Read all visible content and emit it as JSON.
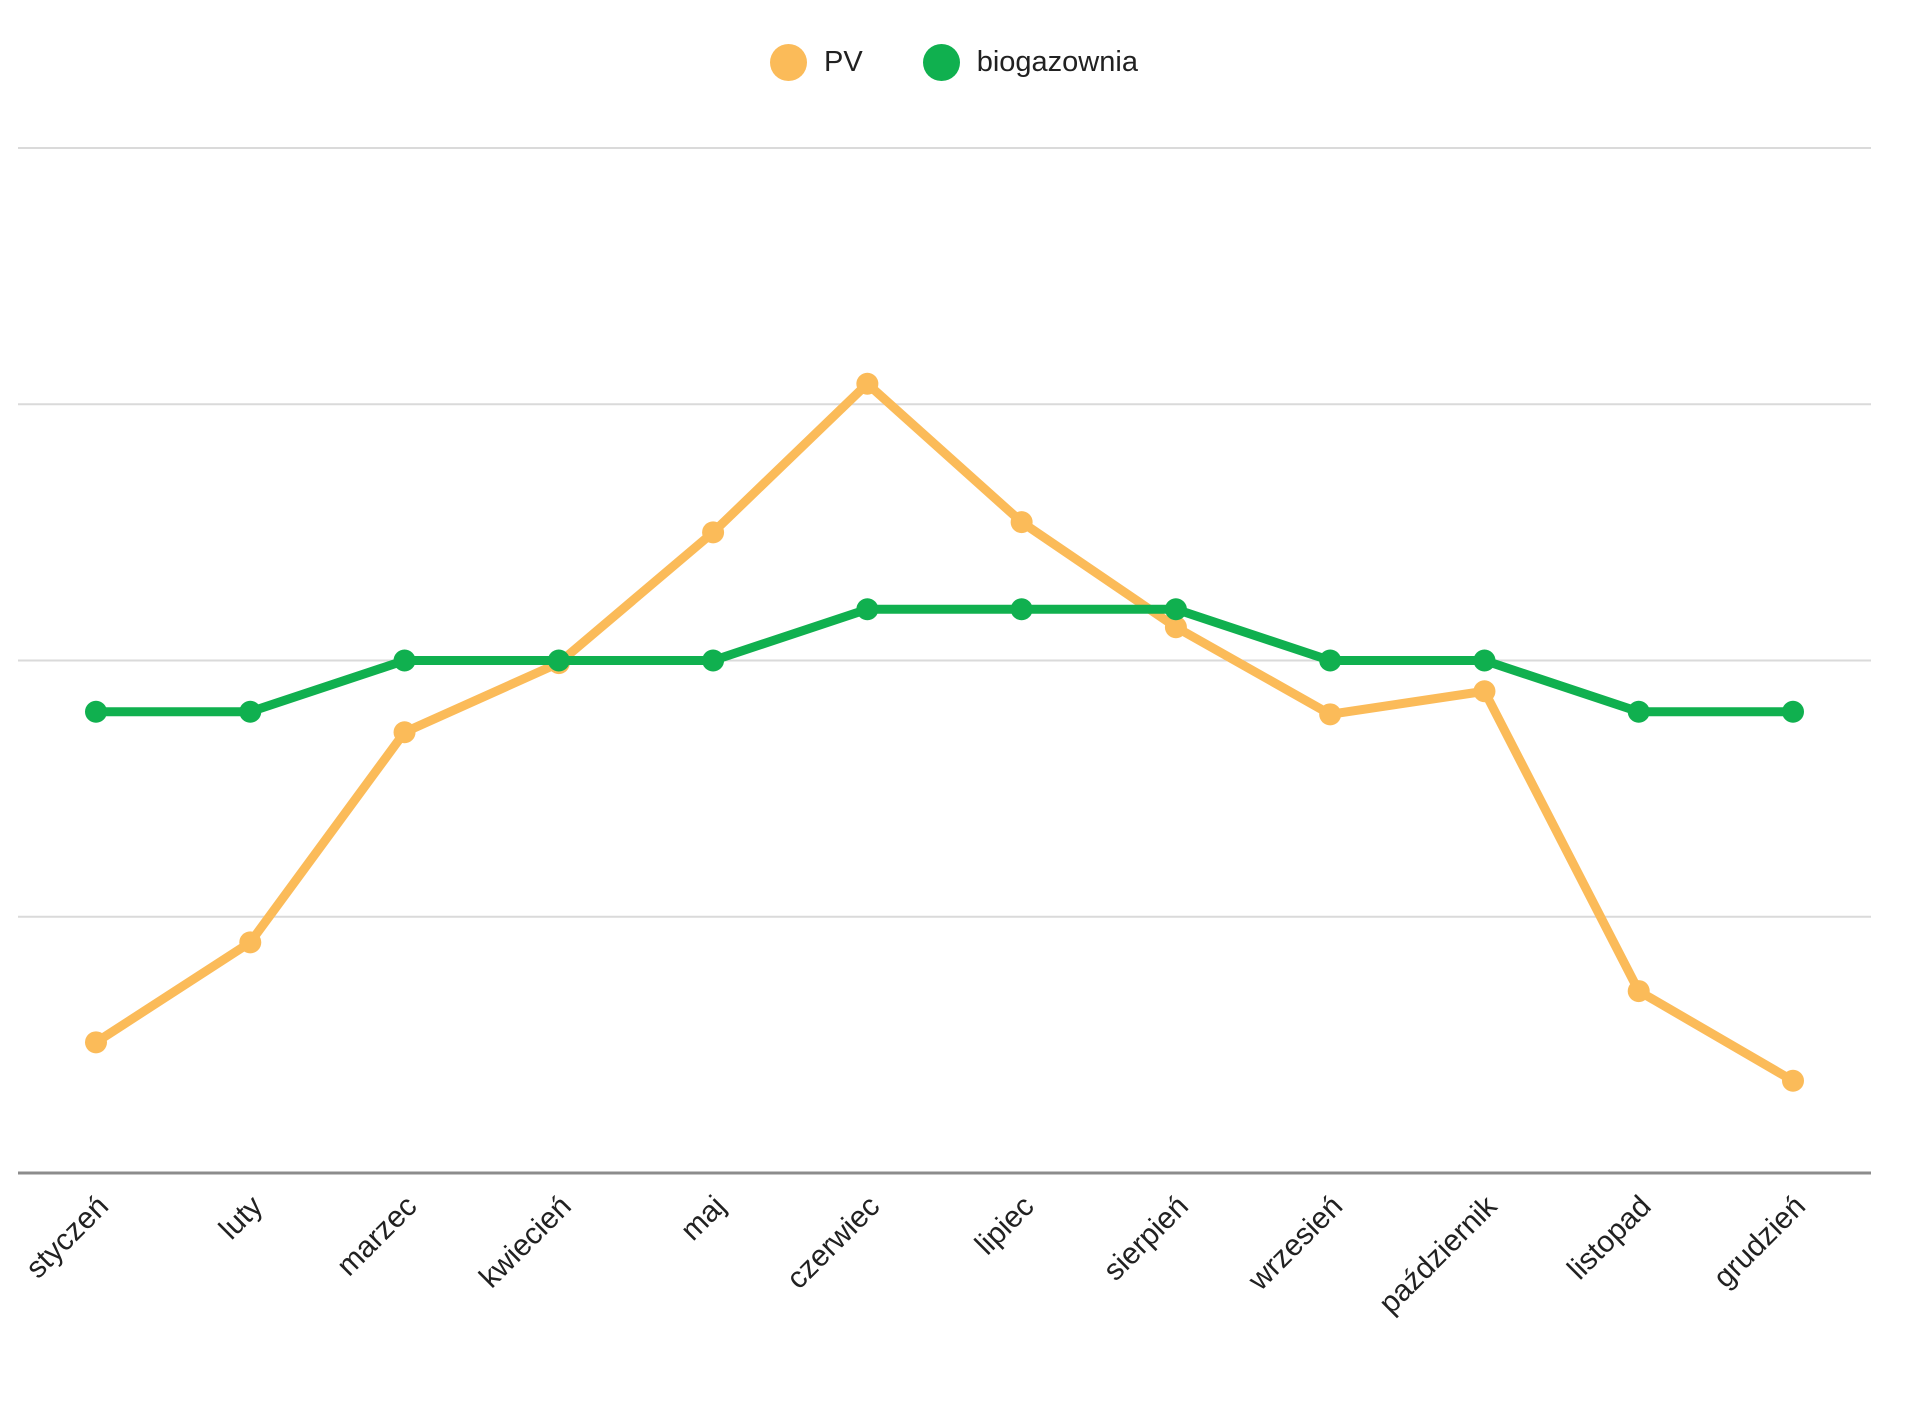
{
  "page": {
    "background": "#ffffff",
    "text_color": "#212121",
    "gridline_color": "#dadada",
    "axis_line_color": "#8c8c8c"
  },
  "legend": {
    "items": [
      {
        "label": "PV",
        "color": "#fbbb59"
      },
      {
        "label": "biogazownia",
        "color": "#10b04f"
      }
    ]
  },
  "chart_data": {
    "type": "line",
    "title": "",
    "xlabel": "",
    "ylabel": "",
    "categories": [
      "styczeń",
      "luty",
      "marzec",
      "kwiecień",
      "maj",
      "czerwiec",
      "lipiec",
      "sierpień",
      "wrzesień",
      "październik",
      "listopad",
      "grudzień"
    ],
    "series": [
      {
        "name": "PV",
        "color": "#fbbb59",
        "values": [
          0.51,
          0.9,
          1.72,
          1.99,
          2.5,
          3.08,
          2.54,
          2.13,
          1.79,
          1.88,
          0.71,
          0.36
        ]
      },
      {
        "name": "biogazownia",
        "color": "#10b04f",
        "values": [
          1.8,
          1.8,
          2.0,
          2.0,
          2.0,
          2.2,
          2.2,
          2.2,
          2.0,
          2.0,
          1.8,
          1.8
        ]
      }
    ],
    "ylim": [
      0,
      4
    ],
    "y_axis_labels_visible": false,
    "y_unit_note": "y axis unlabeled; values measured in gridline units (baseline = 0, one gridline step = 1)",
    "gridlines": [
      1,
      2,
      3,
      4
    ],
    "grid": true,
    "legend_position": "top-center",
    "marker": "circle",
    "x_label_rotation_deg": -45
  }
}
